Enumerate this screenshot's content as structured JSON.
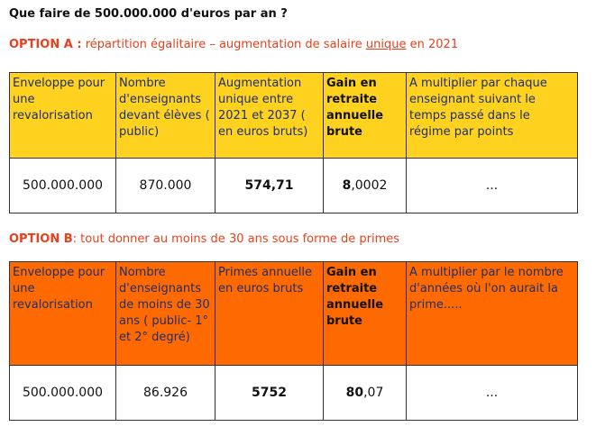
{
  "title": "Que faire de 500.000.000 d'euros par an ?",
  "option_a": {
    "label": "OPTION A :",
    "text_before": " répartition égalitaire – augmentation de salaire ",
    "underlined": "unique",
    "text_after": " en 2021",
    "table": {
      "header": [
        "Enveloppe pour une revalorisation",
        "Nombre d'enseignants devant élèves ( public)",
        "Augmentation unique entre 2021 et 2037 ( en euros bruts)",
        "Gain en retraite annuelle brute",
        "A multiplier par chaque enseignant suivant le temps passé dans le régime par points"
      ],
      "row": [
        "500.000.000",
        "870.000",
        "574,71",
        {
          "bold": "8",
          "rest": ",0002"
        },
        "..."
      ]
    }
  },
  "option_b": {
    "label": "OPTION B",
    "text": ": tout donner au moins de 30 ans sous forme de primes",
    "table": {
      "header": [
        "Enveloppe pour une revalorisation",
        "Nombre d'enseignants de moins de 30 ans ( public-  1° et 2° degré)",
        "Primes annuelle en euros bruts",
        "Gain en retraite annuelle brute",
        "A multiplier par le nombre d'années où l'on aurait la prime....."
      ],
      "row": [
        "500.000.000",
        "86.926",
        "5752",
        {
          "bold": "80",
          "rest": ",07"
        },
        "..."
      ]
    }
  }
}
